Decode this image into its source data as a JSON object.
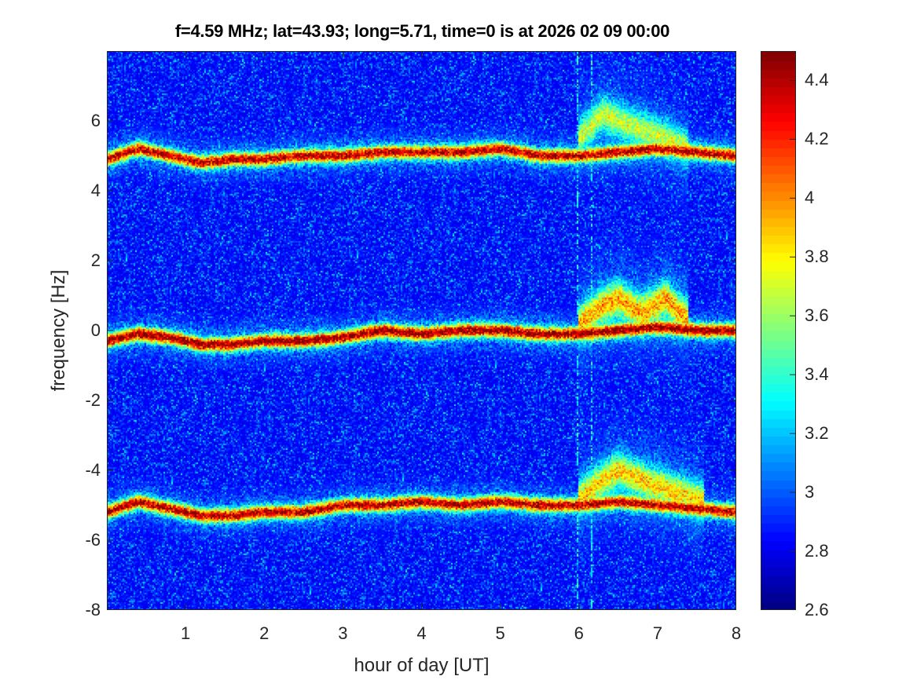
{
  "chart_data": {
    "type": "heatmap",
    "title": "f=4.59 MHz;  lat=43.93; long=5.71, time=0 is at 2026 02 09 00:00",
    "xlabel": "hour of day [UT]",
    "ylabel": "frequency [Hz]",
    "xlim": [
      0,
      8
    ],
    "ylim": [
      -8,
      8
    ],
    "xticks": [
      "1",
      "2",
      "3",
      "4",
      "5",
      "6",
      "7",
      "8"
    ],
    "xtick_values": [
      1,
      2,
      3,
      4,
      5,
      6,
      7,
      8
    ],
    "yticks": [
      "6",
      "4",
      "2",
      "0",
      "-2",
      "-4",
      "-6",
      "-8"
    ],
    "ytick_values": [
      6,
      4,
      2,
      0,
      -2,
      -4,
      -6,
      -8
    ],
    "colormap": "jet",
    "clim": [
      2.6,
      4.5
    ],
    "colorbar_ticks": [
      "4.4",
      "4.2",
      "4",
      "3.8",
      "3.6",
      "3.4",
      "3.2",
      "3",
      "2.8",
      "2.6"
    ],
    "colorbar_tick_values": [
      4.4,
      4.2,
      4.0,
      3.8,
      3.6,
      3.4,
      3.2,
      3.0,
      2.8,
      2.6
    ],
    "background_level": 2.9,
    "ridges": [
      {
        "name": "upper",
        "hours": [
          0,
          0.4,
          0.8,
          1.2,
          1.6,
          2,
          2.5,
          3,
          3.5,
          4,
          4.5,
          5,
          5.5,
          6,
          6.5,
          7,
          7.5,
          8
        ],
        "freq": [
          4.9,
          5.2,
          5.0,
          4.8,
          4.9,
          4.9,
          5.0,
          5.0,
          5.1,
          5.1,
          5.1,
          5.2,
          5.0,
          5.0,
          5.1,
          5.2,
          5.1,
          5.0
        ],
        "peak": 4.4
      },
      {
        "name": "center",
        "hours": [
          0,
          0.4,
          0.8,
          1.2,
          1.6,
          2,
          2.5,
          3,
          3.5,
          4,
          4.5,
          5,
          5.5,
          6,
          6.5,
          7,
          7.5,
          8
        ],
        "freq": [
          -0.3,
          -0.1,
          -0.2,
          -0.4,
          -0.4,
          -0.3,
          -0.3,
          -0.2,
          0.0,
          -0.1,
          0.0,
          0.0,
          -0.1,
          -0.1,
          0.0,
          0.1,
          0.0,
          0.0
        ],
        "peak": 4.5
      },
      {
        "name": "lower",
        "hours": [
          0,
          0.4,
          0.8,
          1.2,
          1.6,
          2,
          2.5,
          3,
          3.5,
          4,
          4.5,
          5,
          5.5,
          6,
          6.5,
          7,
          7.5,
          8
        ],
        "freq": [
          -5.2,
          -4.9,
          -5.1,
          -5.3,
          -5.3,
          -5.2,
          -5.2,
          -5.0,
          -5.0,
          -4.9,
          -5.0,
          -4.9,
          -5.0,
          -5.0,
          -4.9,
          -5.0,
          -5.1,
          -5.2
        ],
        "peak": 4.4
      },
      {
        "name": "upper-disturbance",
        "hours": [
          6.0,
          6.3,
          6.6,
          7.0,
          7.4
        ],
        "freq": [
          5.5,
          6.2,
          5.9,
          5.6,
          5.2
        ],
        "peak": 3.6
      },
      {
        "name": "center-disturbance",
        "hours": [
          6.0,
          6.3,
          6.5,
          6.8,
          7.1,
          7.4
        ],
        "freq": [
          0.2,
          0.7,
          0.9,
          0.5,
          0.9,
          0.3
        ],
        "peak": 3.9
      },
      {
        "name": "lower-disturbance",
        "hours": [
          6.0,
          6.3,
          6.5,
          6.8,
          7.2,
          7.6
        ],
        "freq": [
          -4.8,
          -4.3,
          -4.0,
          -4.3,
          -4.6,
          -4.9
        ],
        "peak": 3.8
      }
    ],
    "vertical_artifacts_hours": [
      5.98,
      6.17
    ]
  }
}
